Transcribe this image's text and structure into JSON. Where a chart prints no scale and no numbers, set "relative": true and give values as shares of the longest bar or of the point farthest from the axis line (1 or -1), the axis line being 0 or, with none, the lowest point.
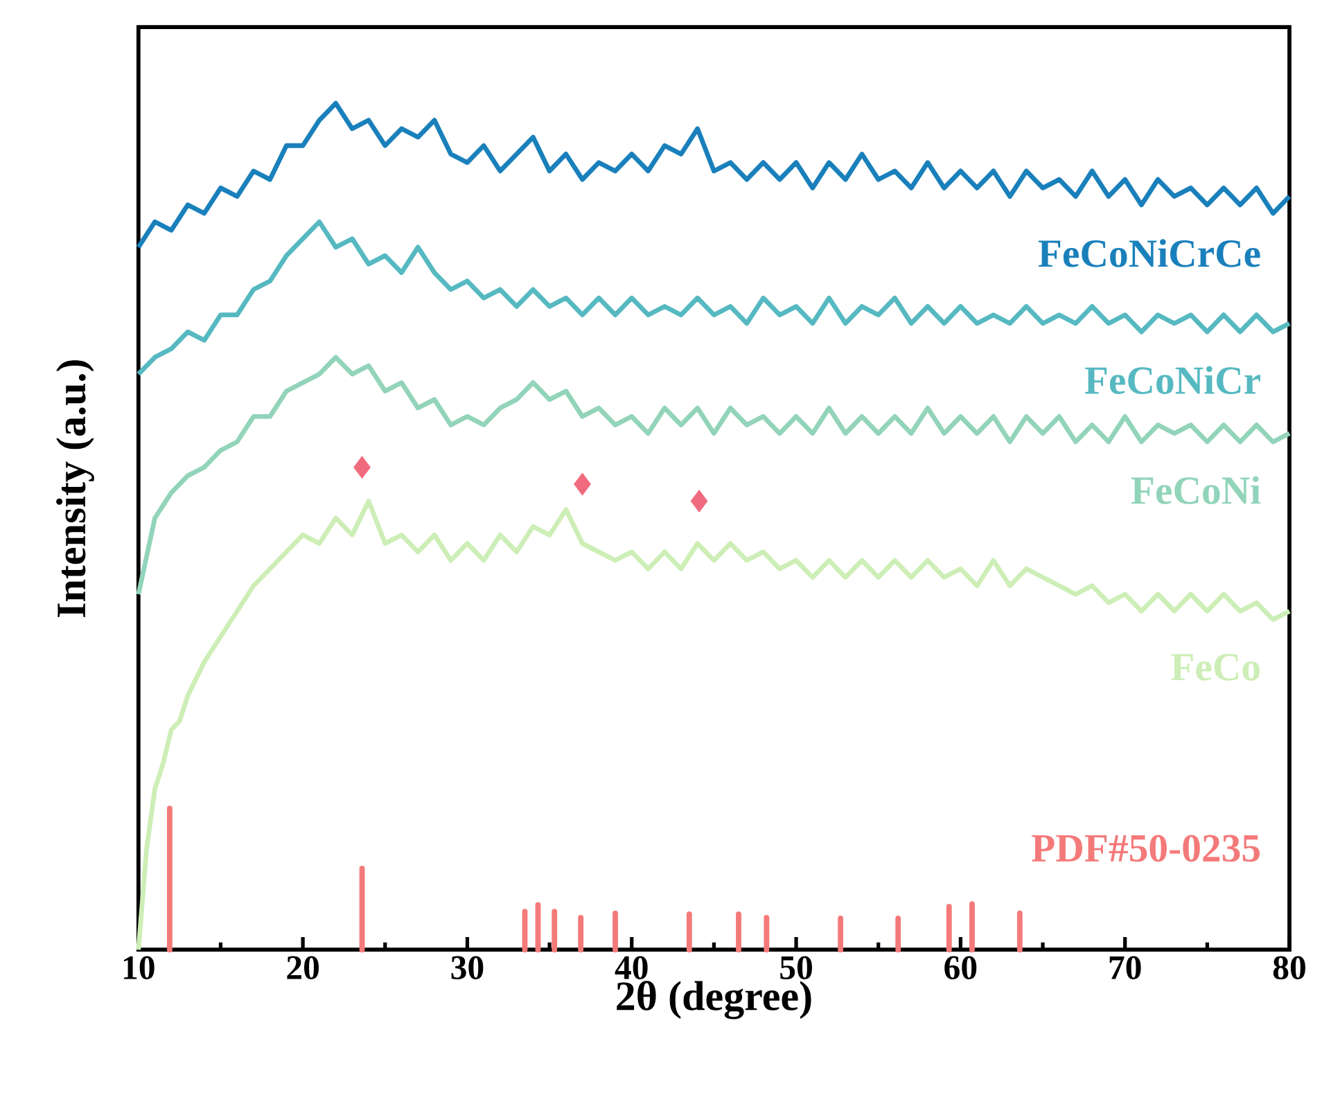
{
  "chart_data": {
    "type": "line",
    "relative": true,
    "xlabel": "2θ (degree)",
    "ylabel": "Intensity (a.u.)",
    "xlim": [
      10,
      80
    ],
    "xticks": [
      10,
      20,
      30,
      40,
      50,
      60,
      70,
      80
    ],
    "x": [
      10,
      11,
      12,
      13,
      14,
      15,
      16,
      17,
      18,
      19,
      20,
      21,
      22,
      23,
      24,
      25,
      26,
      27,
      28,
      29,
      30,
      31,
      32,
      33,
      34,
      35,
      36,
      37,
      38,
      39,
      40,
      41,
      42,
      43,
      44,
      45,
      46,
      47,
      48,
      49,
      50,
      51,
      52,
      53,
      54,
      55,
      56,
      57,
      58,
      59,
      60,
      61,
      62,
      63,
      64,
      65,
      66,
      67,
      68,
      69,
      70,
      71,
      72,
      73,
      74,
      75,
      76,
      77,
      78,
      79,
      80
    ],
    "series": [
      {
        "name": "FeCoNiCrCe",
        "color": "#1a80bb",
        "values": [
          0.83,
          0.86,
          0.85,
          0.88,
          0.87,
          0.9,
          0.89,
          0.92,
          0.91,
          0.95,
          0.95,
          0.98,
          1.0,
          0.97,
          0.98,
          0.95,
          0.97,
          0.96,
          0.98,
          0.94,
          0.93,
          0.95,
          0.92,
          0.94,
          0.96,
          0.92,
          0.94,
          0.91,
          0.93,
          0.92,
          0.94,
          0.92,
          0.95,
          0.94,
          0.97,
          0.92,
          0.93,
          0.91,
          0.93,
          0.91,
          0.93,
          0.9,
          0.93,
          0.91,
          0.94,
          0.91,
          0.92,
          0.9,
          0.93,
          0.9,
          0.92,
          0.9,
          0.92,
          0.89,
          0.92,
          0.9,
          0.91,
          0.89,
          0.92,
          0.89,
          0.91,
          0.88,
          0.91,
          0.89,
          0.9,
          0.88,
          0.9,
          0.88,
          0.9,
          0.87,
          0.89
        ]
      },
      {
        "name": "FeCoNiCr",
        "color": "#56b9c1",
        "values": [
          0.68,
          0.7,
          0.71,
          0.73,
          0.72,
          0.75,
          0.75,
          0.78,
          0.79,
          0.82,
          0.84,
          0.86,
          0.83,
          0.84,
          0.81,
          0.82,
          0.8,
          0.83,
          0.8,
          0.78,
          0.79,
          0.77,
          0.78,
          0.76,
          0.78,
          0.76,
          0.77,
          0.75,
          0.77,
          0.75,
          0.77,
          0.75,
          0.76,
          0.75,
          0.77,
          0.75,
          0.76,
          0.74,
          0.77,
          0.75,
          0.76,
          0.74,
          0.77,
          0.74,
          0.76,
          0.75,
          0.77,
          0.74,
          0.76,
          0.74,
          0.76,
          0.74,
          0.75,
          0.74,
          0.76,
          0.74,
          0.75,
          0.74,
          0.76,
          0.74,
          0.75,
          0.73,
          0.75,
          0.74,
          0.75,
          0.73,
          0.75,
          0.73,
          0.75,
          0.73,
          0.74
        ]
      },
      {
        "name": "FeCoNi",
        "color": "#92d4ba",
        "values": [
          0.42,
          0.51,
          0.54,
          0.56,
          0.57,
          0.59,
          0.6,
          0.63,
          0.63,
          0.66,
          0.67,
          0.68,
          0.7,
          0.68,
          0.69,
          0.66,
          0.67,
          0.64,
          0.65,
          0.62,
          0.63,
          0.62,
          0.64,
          0.65,
          0.67,
          0.65,
          0.66,
          0.63,
          0.64,
          0.62,
          0.63,
          0.61,
          0.64,
          0.62,
          0.64,
          0.61,
          0.64,
          0.62,
          0.63,
          0.61,
          0.63,
          0.61,
          0.64,
          0.61,
          0.63,
          0.61,
          0.63,
          0.61,
          0.64,
          0.61,
          0.63,
          0.61,
          0.63,
          0.6,
          0.63,
          0.61,
          0.63,
          0.6,
          0.62,
          0.6,
          0.63,
          0.6,
          0.62,
          0.61,
          0.62,
          0.6,
          0.62,
          0.6,
          0.62,
          0.6,
          0.61
        ]
      },
      {
        "name": "FeCo",
        "color": "#cdeeb6",
        "x": [
          10,
          10.5,
          11,
          11.5,
          12,
          12.5,
          13,
          13.5,
          14,
          15,
          16,
          17,
          18,
          19,
          20,
          21,
          22,
          23,
          24,
          25,
          26,
          27,
          28,
          29,
          30,
          31,
          32,
          33,
          34,
          35,
          36,
          37,
          38,
          39,
          40,
          41,
          42,
          43,
          44,
          45,
          46,
          47,
          48,
          49,
          50,
          51,
          52,
          53,
          54,
          55,
          56,
          57,
          58,
          59,
          60,
          61,
          62,
          63,
          64,
          65,
          66,
          67,
          68,
          69,
          70,
          71,
          72,
          73,
          74,
          75,
          76,
          77,
          78,
          79,
          80
        ],
        "values": [
          0.0,
          0.12,
          0.19,
          0.22,
          0.26,
          0.27,
          0.3,
          0.32,
          0.34,
          0.37,
          0.4,
          0.43,
          0.45,
          0.47,
          0.49,
          0.48,
          0.51,
          0.49,
          0.53,
          0.48,
          0.49,
          0.47,
          0.49,
          0.46,
          0.48,
          0.46,
          0.49,
          0.47,
          0.5,
          0.49,
          0.52,
          0.48,
          0.47,
          0.46,
          0.47,
          0.45,
          0.47,
          0.45,
          0.48,
          0.46,
          0.48,
          0.46,
          0.47,
          0.45,
          0.46,
          0.44,
          0.46,
          0.44,
          0.46,
          0.44,
          0.46,
          0.44,
          0.46,
          0.44,
          0.45,
          0.43,
          0.46,
          0.43,
          0.45,
          0.44,
          0.43,
          0.42,
          0.43,
          0.41,
          0.42,
          0.4,
          0.42,
          0.4,
          0.42,
          0.4,
          0.42,
          0.4,
          0.41,
          0.39,
          0.4
        ]
      },
      {
        "type": "scatter",
        "marker": "diamond",
        "color": "#f06b7e",
        "x": [
          23.6,
          37.0,
          44.1
        ],
        "values": [
          0.57,
          0.55,
          0.53
        ]
      },
      {
        "type": "bar",
        "name": "PDF#50-0235",
        "color": "#f47a7a",
        "x": [
          11.9,
          23.6,
          33.5,
          34.3,
          35.3,
          36.9,
          39.0,
          43.5,
          46.5,
          48.2,
          52.7,
          56.2,
          59.3,
          60.7,
          63.6
        ],
        "values": [
          0.167,
          0.096,
          0.045,
          0.053,
          0.045,
          0.038,
          0.043,
          0.042,
          0.042,
          0.038,
          0.037,
          0.037,
          0.051,
          0.054,
          0.043
        ]
      }
    ]
  }
}
